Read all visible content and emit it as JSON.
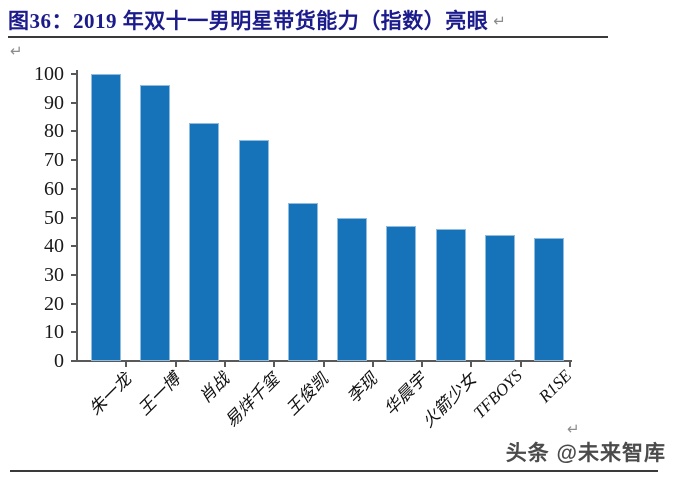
{
  "header": {
    "title": "图36：2019 年双十一男明星带货能力（指数）亮眼"
  },
  "marks": {
    "return_glyph": "↵"
  },
  "chart_data": {
    "type": "bar",
    "title": "2019 年双十一男明星带货能力（指数）",
    "categories": [
      "朱一龙",
      "王一博",
      "肖战",
      "易烊千玺",
      "王俊凯",
      "李现",
      "华晨宇",
      "火箭少女",
      "TFBOYS",
      "R1SE"
    ],
    "values": [
      100,
      96,
      83,
      77,
      55,
      50,
      47,
      46,
      44,
      43
    ],
    "xlabel": "",
    "ylabel": "",
    "ylim": [
      0,
      100
    ],
    "yticks": [
      0,
      10,
      20,
      30,
      40,
      50,
      60,
      70,
      80,
      90,
      100
    ],
    "grid": false,
    "legend": "none",
    "bar_color": "#1673B9",
    "bar_border_color": "#8FBCDF",
    "axis_color": "#595959"
  },
  "footer": {
    "watermark": "头条 @未来智库"
  },
  "colors": {
    "title_text": "#1B1B8C",
    "rule": "#3A3A3A",
    "return_mark": "#8C8C8C"
  }
}
